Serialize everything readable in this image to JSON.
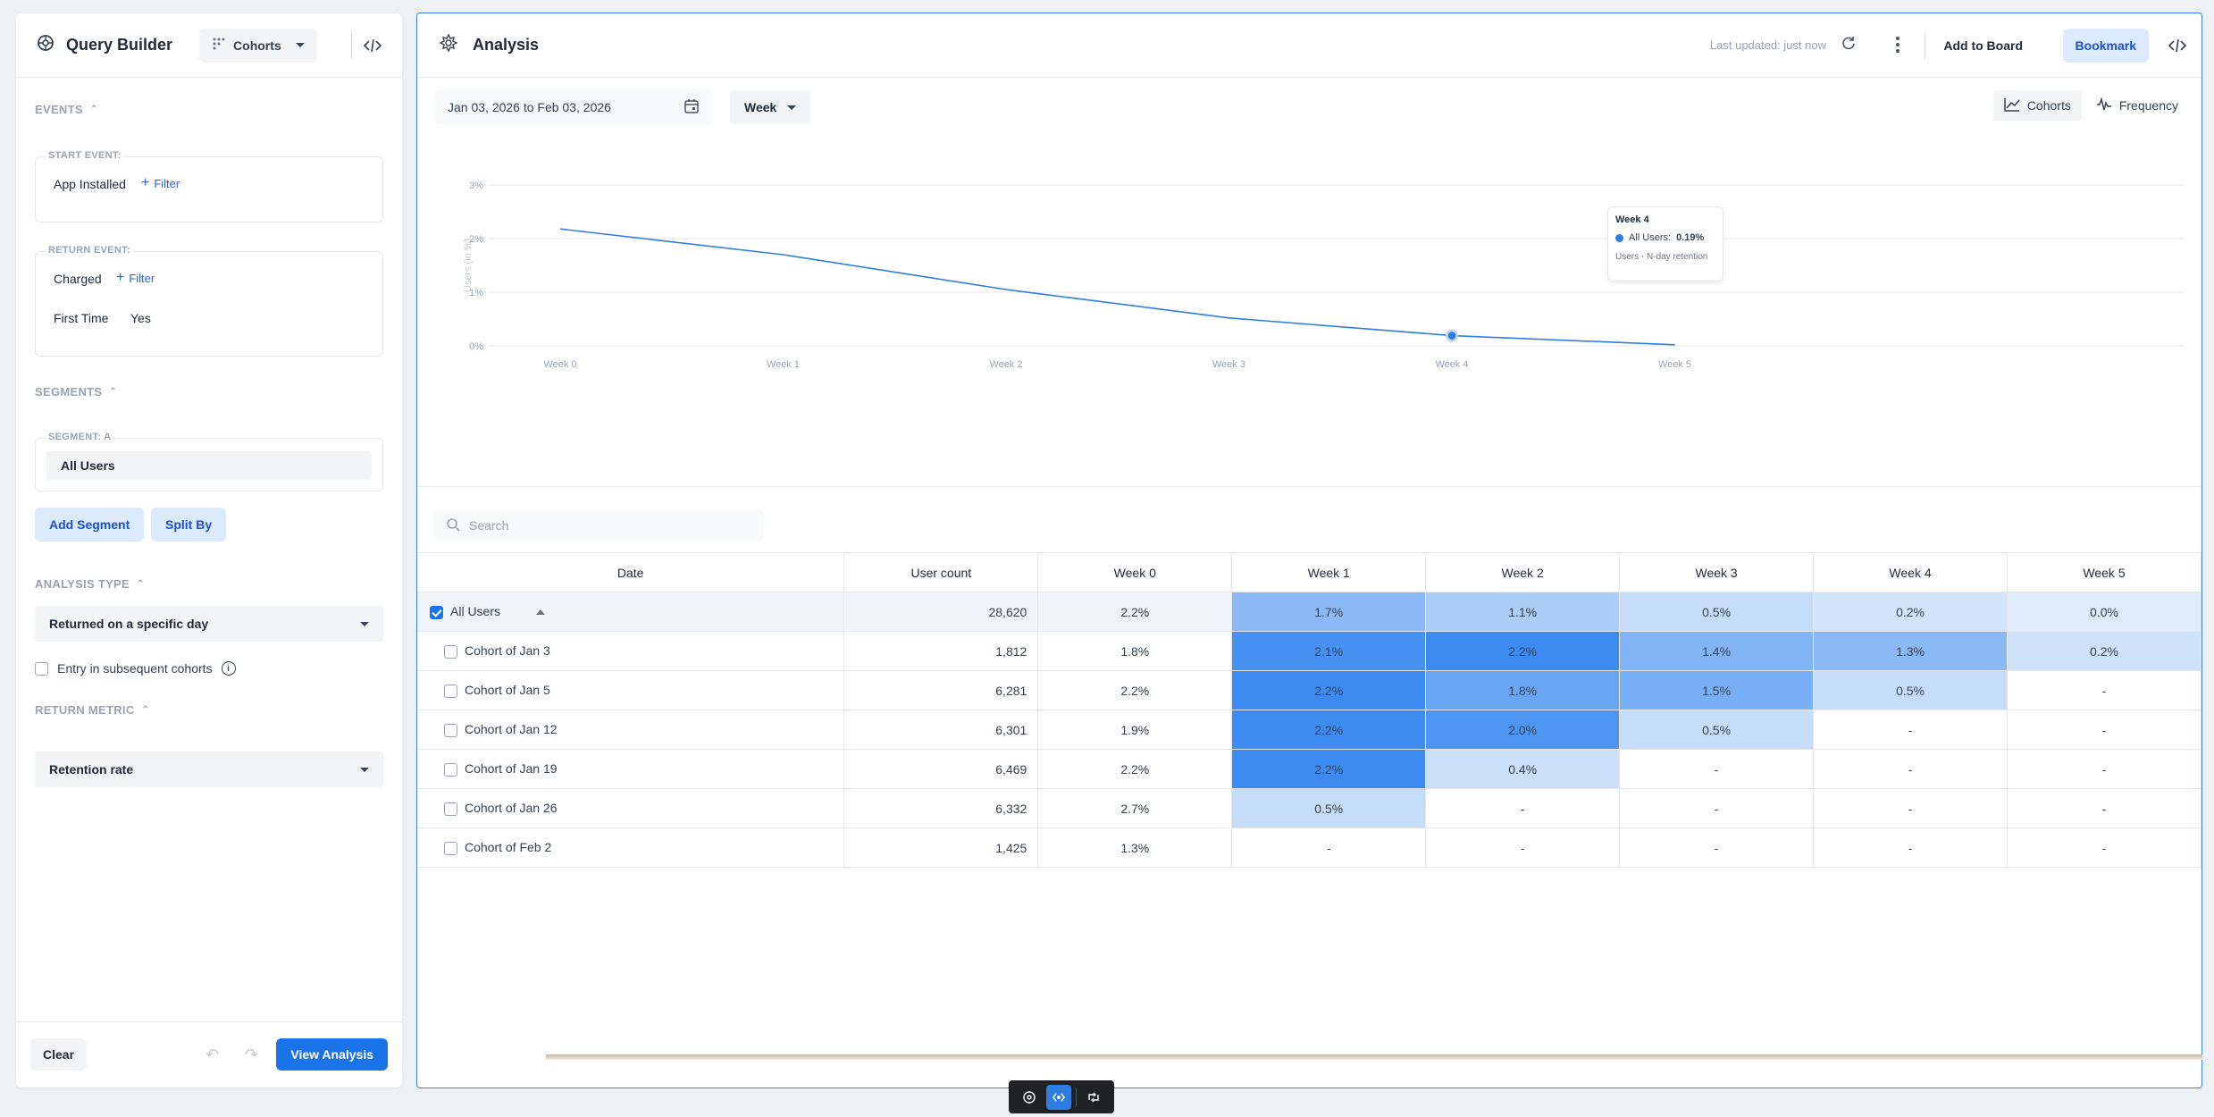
{
  "query_builder": {
    "title": "Query Builder",
    "mode": "Cohorts",
    "events": {
      "section_label": "EVENTS",
      "start_event": {
        "label": "START EVENT:",
        "value": "App Installed",
        "filter_label": "Filter"
      },
      "return_event": {
        "label": "RETURN EVENT:",
        "value": "Charged",
        "filter_label": "Filter",
        "property": "First Time",
        "property_value": "Yes"
      }
    },
    "segments": {
      "section_label": "SEGMENTS",
      "segment_a_label": "SEGMENT: A",
      "segment_a_value": "All Users",
      "add_segment": "Add Segment",
      "split_by": "Split By"
    },
    "analysis_type": {
      "section_label": "ANALYSIS TYPE",
      "value": "Returned on a specific day",
      "entry_checkbox_label": "Entry in subsequent cohorts"
    },
    "return_metric": {
      "section_label": "RETURN METRIC",
      "value": "Retention rate"
    },
    "footer": {
      "clear": "Clear",
      "view_analysis": "View Analysis"
    }
  },
  "analysis": {
    "title": "Analysis",
    "last_updated": "Last updated: just now",
    "add_to_board": "Add to Board",
    "bookmark": "Bookmark",
    "date_range": "Jan 03, 2026 to Feb 03, 2026",
    "granularity": "Week",
    "views": [
      "Cohorts",
      "Frequency"
    ],
    "active_view": "Cohorts",
    "search_placeholder": "Search",
    "tooltip": {
      "title": "Week 4",
      "series": "All Users:",
      "value": "0.19%",
      "footer": "Users · N-day retention"
    }
  },
  "chart_data": {
    "type": "line",
    "title": "",
    "ylabel": "Users (in %)",
    "xlabel": "",
    "categories": [
      "Week 0",
      "Week 1",
      "Week 2",
      "Week 3",
      "Week 4",
      "Week 5"
    ],
    "series": [
      {
        "name": "All Users",
        "values": [
          2.18,
          1.7,
          1.05,
          0.52,
          0.19,
          0.02
        ]
      }
    ],
    "yticks": [
      "0%",
      "1%",
      "2%",
      "3%"
    ],
    "ylim": [
      0,
      3
    ],
    "highlight_index": 4,
    "grid": true,
    "color": "#2f7de1"
  },
  "table": {
    "headers": [
      "Date",
      "User count",
      "Week 0",
      "Week 1",
      "Week 2",
      "Week 3",
      "Week 4",
      "Week 5"
    ],
    "rows": [
      {
        "label": "All Users",
        "count": "28,620",
        "cells": [
          "2.2%",
          "1.7%",
          "1.1%",
          "0.5%",
          "0.2%",
          "0.0%"
        ],
        "levels": [
          0,
          0.55,
          0.35,
          0.2,
          0.12,
          0.05
        ],
        "checked": true,
        "group": true
      },
      {
        "label": "Cohort of Jan 3",
        "count": "1,812",
        "cells": [
          "1.8%",
          "2.1%",
          "2.2%",
          "1.4%",
          "1.3%",
          "0.2%"
        ],
        "levels": [
          0,
          0.95,
          1.0,
          0.6,
          0.55,
          0.15
        ],
        "checked": false,
        "group": false
      },
      {
        "label": "Cohort of Jan 5",
        "count": "6,281",
        "cells": [
          "2.2%",
          "2.2%",
          "1.8%",
          "1.5%",
          "0.5%",
          "-"
        ],
        "levels": [
          0,
          1.0,
          0.75,
          0.65,
          0.2,
          0
        ],
        "checked": false,
        "group": false
      },
      {
        "label": "Cohort of Jan 12",
        "count": "6,301",
        "cells": [
          "1.9%",
          "2.2%",
          "2.0%",
          "0.5%",
          "-",
          "-"
        ],
        "levels": [
          0,
          1.0,
          0.9,
          0.2,
          0,
          0
        ],
        "checked": false,
        "group": false
      },
      {
        "label": "Cohort of Jan 19",
        "count": "6,469",
        "cells": [
          "2.2%",
          "2.2%",
          "0.4%",
          "-",
          "-",
          "-"
        ],
        "levels": [
          0,
          1.0,
          0.18,
          0,
          0,
          0
        ],
        "checked": false,
        "group": false
      },
      {
        "label": "Cohort of Jan 26",
        "count": "6,332",
        "cells": [
          "2.7%",
          "0.5%",
          "-",
          "-",
          "-",
          "-"
        ],
        "levels": [
          0,
          0.2,
          0,
          0,
          0,
          0
        ],
        "checked": false,
        "group": false
      },
      {
        "label": "Cohort of Feb 2",
        "count": "1,425",
        "cells": [
          "1.3%",
          "-",
          "-",
          "-",
          "-",
          "-"
        ],
        "levels": [
          0,
          0,
          0,
          0,
          0,
          0
        ],
        "checked": false,
        "group": false
      }
    ]
  },
  "colors": {
    "accent": "#1a73e8",
    "heat_max": "#3d8bf0",
    "line": "#2f7de1"
  }
}
